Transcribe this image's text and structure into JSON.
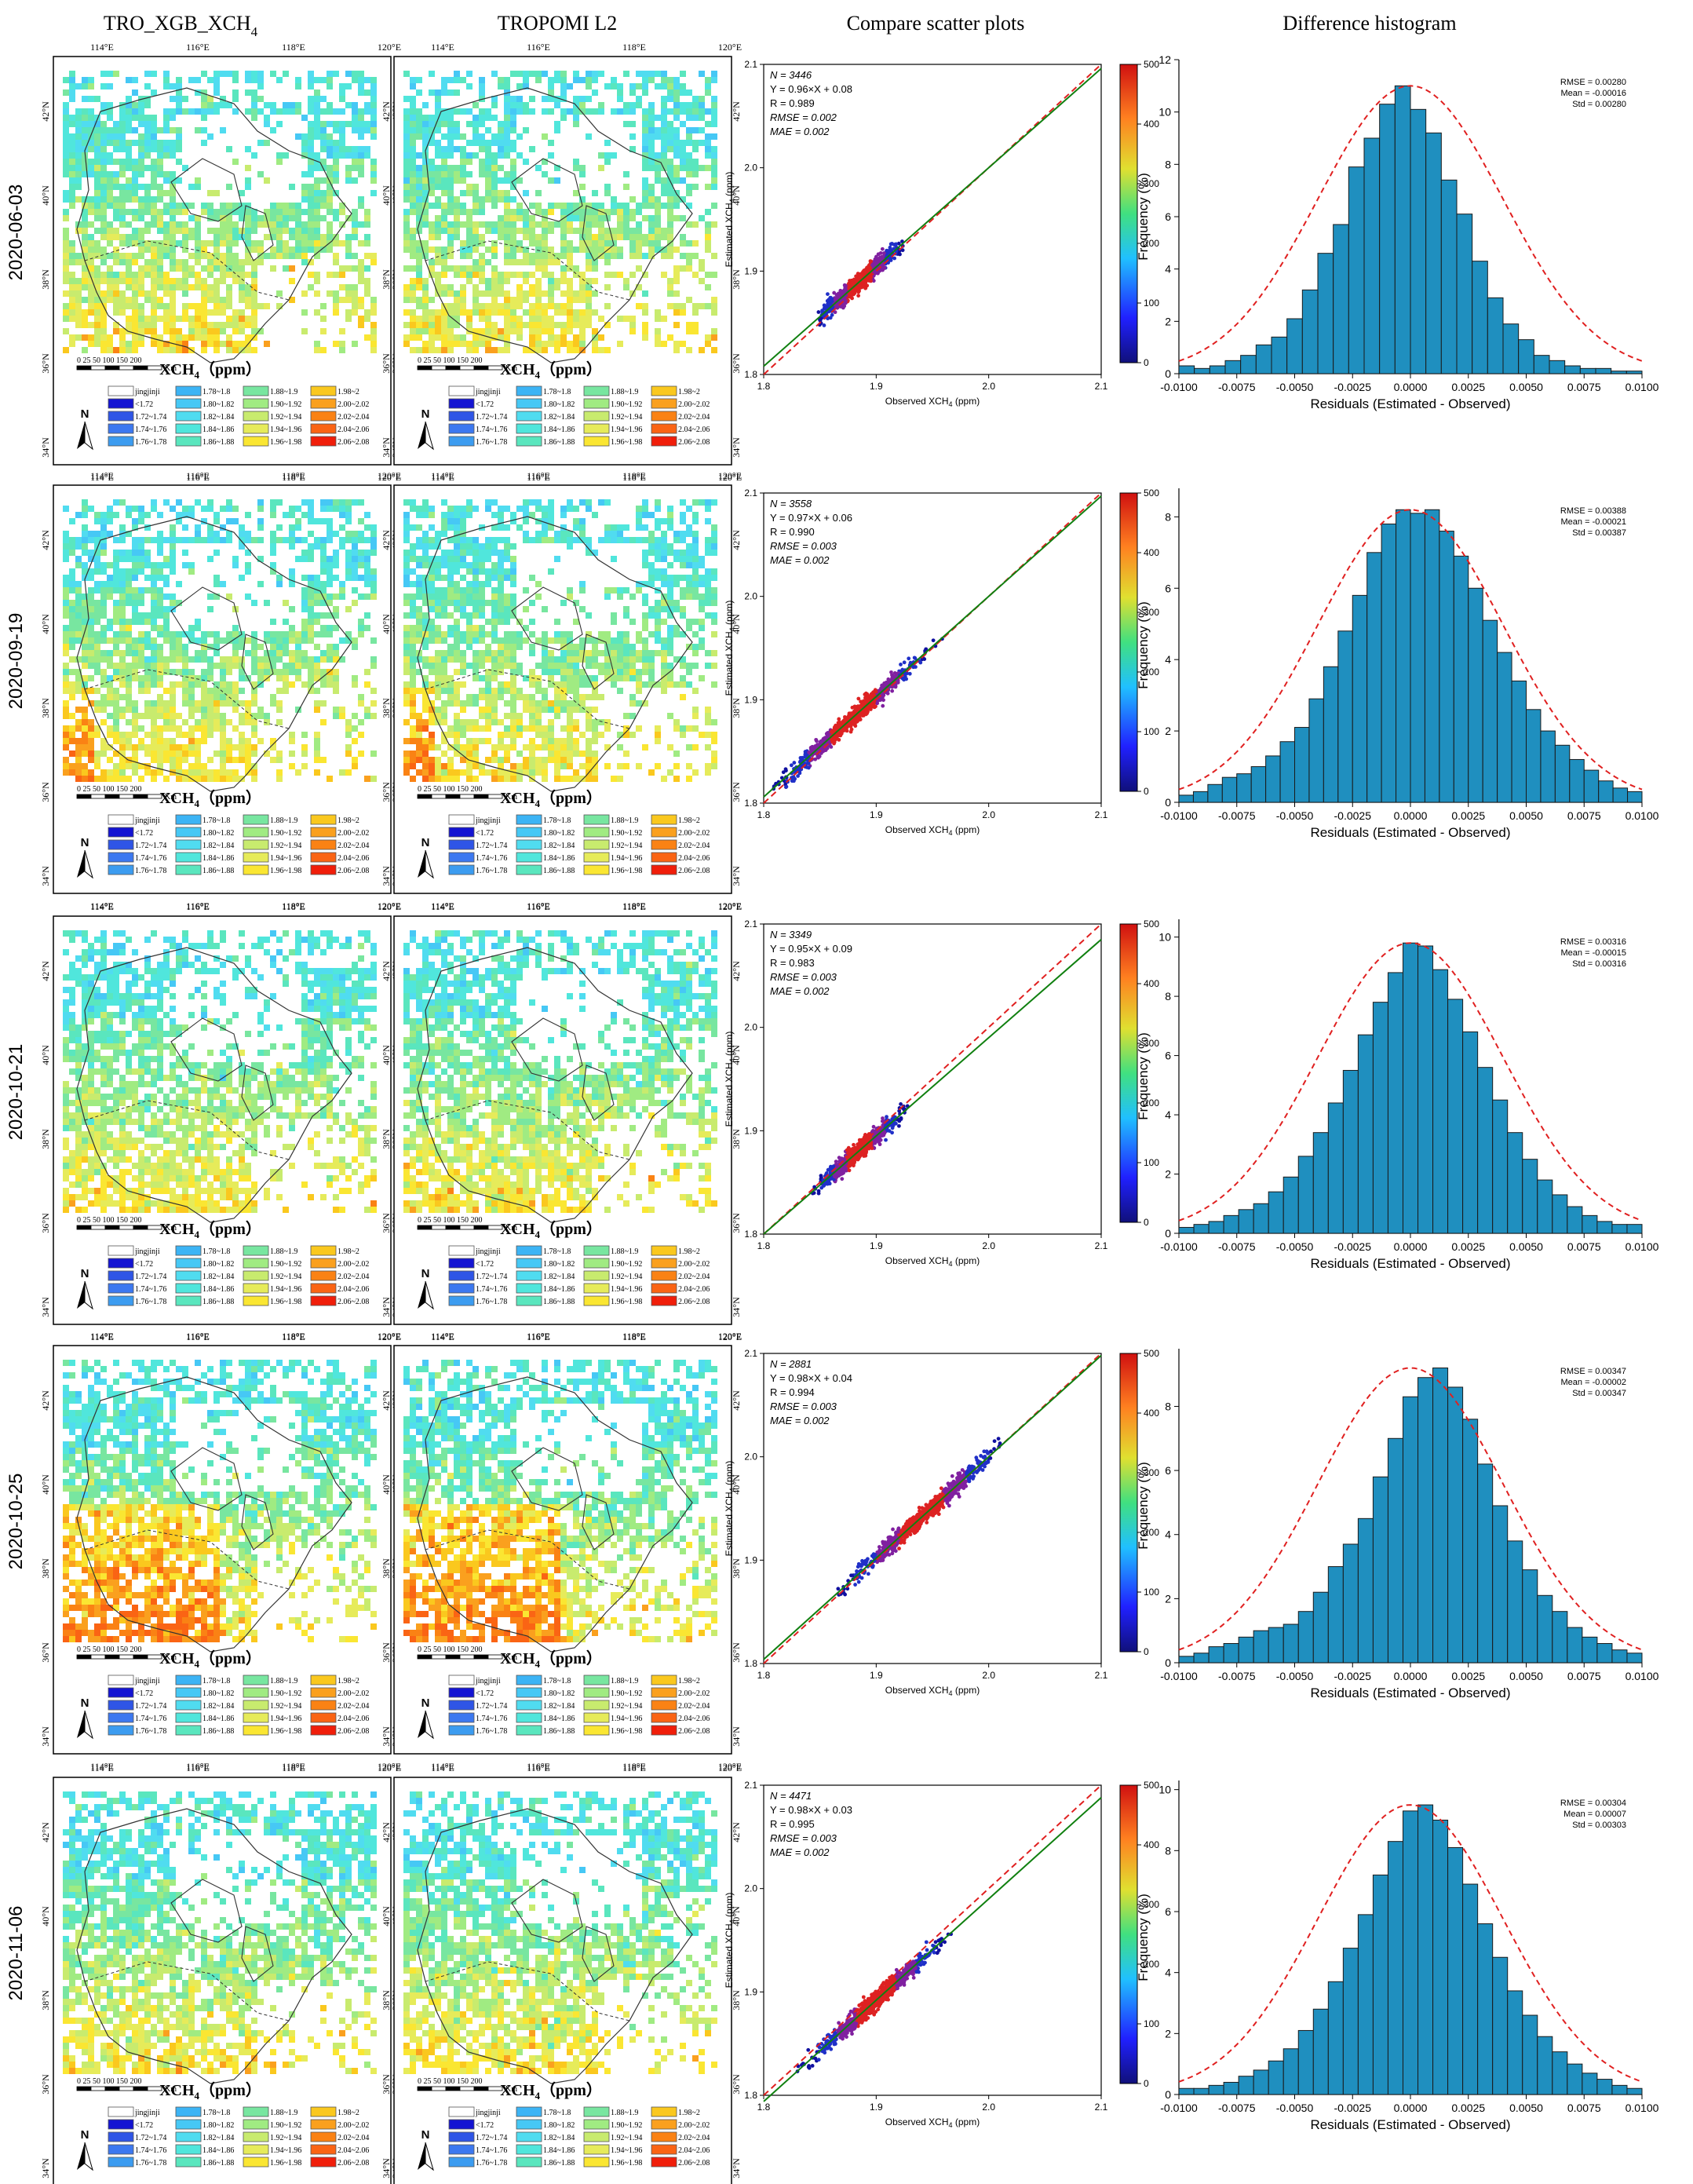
{
  "figure": {
    "headers": [
      "TRO_XGB_XCH",
      "TROPOMI L2",
      "Compare scatter plots",
      "Difference histogram"
    ],
    "header_subscript": "4"
  },
  "map": {
    "lon_ticks": [
      "114°E",
      "116°E",
      "118°E",
      "120°E"
    ],
    "lat_ticks": [
      "42°N",
      "40°N",
      "38°N",
      "36°N",
      "34°N"
    ],
    "scale_numbers": "0 25 50    100    150    200",
    "scale_unit": "Km",
    "legend_title": "XCH",
    "legend_title_sub": "4",
    "legend_title_unit": "（ppm）",
    "north_label": "N",
    "legend_items": [
      {
        "label": "jingjinji",
        "color": "#ffffff"
      },
      {
        "label": "<1.72",
        "color": "#1414d2"
      },
      {
        "label": "1.72~1.74",
        "color": "#2f55e6"
      },
      {
        "label": "1.74~1.76",
        "color": "#3c78f0"
      },
      {
        "label": "1.76~1.78",
        "color": "#3c9cf0"
      },
      {
        "label": "1.78~1.8",
        "color": "#3cb4f5"
      },
      {
        "label": "1.80~1.82",
        "color": "#46c8f5"
      },
      {
        "label": "1.82~1.84",
        "color": "#50dcf0"
      },
      {
        "label": "1.84~1.86",
        "color": "#50e6dc"
      },
      {
        "label": "1.86~1.88",
        "color": "#5ae6be"
      },
      {
        "label": "1.88~1.9",
        "color": "#78e6a0"
      },
      {
        "label": "1.90~1.92",
        "color": "#a0eb82"
      },
      {
        "label": "1.92~1.94",
        "color": "#c8eb6e"
      },
      {
        "label": "1.94~1.96",
        "color": "#e6eb5a"
      },
      {
        "label": "1.96~1.98",
        "color": "#fae632"
      },
      {
        "label": "1.98~2",
        "color": "#fac81e"
      },
      {
        "label": "2.00~2.02",
        "color": "#faa01e"
      },
      {
        "label": "2.02~2.04",
        "color": "#fa8214"
      },
      {
        "label": "2.04~2.06",
        "color": "#fa6414"
      },
      {
        "label": "2.06~2.08",
        "color": "#f01e0a"
      }
    ]
  },
  "scatter": {
    "xlabel": "Observed XCH",
    "ylabel": "Estimated XCH",
    "unit": " (ppm)",
    "sub": "4",
    "ticks": [
      "1.8",
      "1.9",
      "2.0",
      "2.1"
    ],
    "cbar_ticks": [
      "0",
      "100",
      "200",
      "300",
      "400",
      "500"
    ]
  },
  "histogram": {
    "xlabel": "Residuals (Estimated - Observed)",
    "ylabel": "Frequency (%)",
    "xticks": [
      "-0.0100",
      "-0.0075",
      "-0.0050",
      "-0.0025",
      "0.0000",
      "0.0025",
      "0.0050",
      "0.0075",
      "0.0100"
    ]
  },
  "chart_data": [
    {
      "type": "scatter",
      "date": "2020-06-03",
      "stats": [
        "N = 3446",
        "Y = 0.96×X + 0.08",
        "R = 0.989",
        "RMSE = 0.002",
        "MAE = 0.002"
      ],
      "xlim": [
        1.8,
        2.1
      ],
      "ylim": [
        1.8,
        2.1
      ],
      "fit": [
        0.96,
        0.08
      ],
      "x_range": [
        1.84,
        1.93
      ],
      "y_max": 2.1,
      "cbar_range": [
        0,
        500
      ],
      "hist_ylim": [
        0,
        12
      ],
      "hist_yticks": [
        "0",
        "2",
        "4",
        "6",
        "8",
        "10",
        "12"
      ],
      "hist_stats": [
        "RMSE = 0.00280",
        "Mean = -0.00016",
        "Std = 0.00280"
      ],
      "hist_values": [
        0.3,
        0.2,
        0.3,
        0.5,
        0.7,
        1.1,
        1.4,
        2.1,
        3.2,
        4.6,
        5.7,
        7.9,
        9.0,
        10.3,
        11.0,
        10.1,
        9.2,
        7.4,
        6.1,
        4.3,
        2.9,
        1.9,
        1.3,
        0.7,
        0.5,
        0.3,
        0.2,
        0.2,
        0.1,
        0.1
      ]
    },
    {
      "type": "scatter",
      "date": "2020-09-19",
      "stats": [
        "N = 3558",
        "Y = 0.97×X + 0.06",
        "R = 0.990",
        "RMSE = 0.003",
        "MAE = 0.002"
      ],
      "xlim": [
        1.8,
        2.1
      ],
      "ylim": [
        1.8,
        2.1
      ],
      "fit": [
        0.97,
        0.06
      ],
      "x_range": [
        1.8,
        1.96
      ],
      "y_max": 2.1,
      "cbar_range": [
        0,
        500
      ],
      "hist_ylim": [
        0,
        8.8
      ],
      "hist_yticks": [
        "0",
        "2",
        "4",
        "6",
        "8"
      ],
      "hist_stats": [
        "RMSE = 0.00388",
        "Mean = -0.00021",
        "Std = 0.00387"
      ],
      "hist_values": [
        0.2,
        0.3,
        0.5,
        0.7,
        0.8,
        1.0,
        1.3,
        1.7,
        2.1,
        2.9,
        3.8,
        4.8,
        5.8,
        7.0,
        7.8,
        8.2,
        8.1,
        8.2,
        7.6,
        6.9,
        6.0,
        5.1,
        4.2,
        3.4,
        2.6,
        2.0,
        1.6,
        1.2,
        0.9,
        0.6,
        0.4,
        0.3
      ]
    },
    {
      "type": "scatter",
      "date": "2020-10-21",
      "stats": [
        "N = 3349",
        "Y = 0.95×X + 0.09",
        "R = 0.983",
        "RMSE = 0.003",
        "MAE = 0.002"
      ],
      "xlim": [
        1.8,
        2.1
      ],
      "ylim": [
        1.8,
        2.1
      ],
      "fit": [
        0.95,
        0.09
      ],
      "x_range": [
        1.84,
        1.93
      ],
      "y_max": 2.1,
      "cbar_range": [
        0,
        500
      ],
      "hist_ylim": [
        0,
        10.6
      ],
      "hist_yticks": [
        "0",
        "2",
        "4",
        "6",
        "8",
        "10"
      ],
      "hist_stats": [
        "RMSE = 0.00316",
        "Mean = -0.00015",
        "Std = 0.00316"
      ],
      "hist_values": [
        0.2,
        0.3,
        0.4,
        0.6,
        0.8,
        1.0,
        1.4,
        1.9,
        2.6,
        3.4,
        4.4,
        5.5,
        6.7,
        7.8,
        8.8,
        9.8,
        9.7,
        8.9,
        7.9,
        6.8,
        5.6,
        4.5,
        3.4,
        2.5,
        1.8,
        1.3,
        0.9,
        0.6,
        0.4,
        0.3,
        0.3
      ]
    },
    {
      "type": "scatter",
      "date": "2020-10-25",
      "stats": [
        "N = 2881",
        "Y = 0.98×X + 0.04",
        "R = 0.994",
        "RMSE = 0.003",
        "MAE = 0.002"
      ],
      "xlim": [
        1.8,
        2.1
      ],
      "ylim": [
        1.8,
        2.1
      ],
      "fit": [
        0.98,
        0.04
      ],
      "x_range": [
        1.86,
        2.02
      ],
      "y_max": 2.1,
      "cbar_range": [
        0,
        500
      ],
      "hist_ylim": [
        0,
        9.8
      ],
      "hist_yticks": [
        "0",
        "2",
        "4",
        "6",
        "8"
      ],
      "hist_stats": [
        "RMSE = 0.00347",
        "Mean = -0.00002",
        "Std = 0.00347"
      ],
      "hist_values": [
        0.2,
        0.3,
        0.5,
        0.6,
        0.8,
        1.0,
        1.1,
        1.2,
        1.6,
        2.2,
        3.0,
        3.7,
        4.5,
        5.8,
        7.0,
        8.3,
        8.9,
        9.2,
        8.6,
        7.6,
        6.2,
        4.9,
        3.8,
        2.9,
        2.1,
        1.6,
        1.1,
        0.8,
        0.6,
        0.4,
        0.3
      ]
    },
    {
      "type": "scatter",
      "date": "2020-11-06",
      "stats": [
        "N = 4471",
        "Y = 0.98×X + 0.03",
        "R = 0.995",
        "RMSE = 0.003",
        "MAE = 0.002"
      ],
      "xlim": [
        1.8,
        2.1
      ],
      "ylim": [
        1.8,
        2.1
      ],
      "fit": [
        0.98,
        0.03
      ],
      "x_range": [
        1.83,
        1.97
      ],
      "y_max": 2.1,
      "cbar_range": [
        0,
        500
      ],
      "hist_ylim": [
        0,
        10.3
      ],
      "hist_yticks": [
        "0",
        "2",
        "4",
        "6",
        "8",
        "10"
      ],
      "hist_stats": [
        "RMSE = 0.00304",
        "Mean = 0.00007",
        "Std = 0.00303"
      ],
      "hist_values": [
        0.2,
        0.2,
        0.3,
        0.4,
        0.6,
        0.8,
        1.1,
        1.5,
        2.1,
        2.8,
        3.7,
        4.8,
        5.9,
        7.2,
        8.3,
        9.3,
        9.5,
        9.0,
        8.1,
        6.9,
        5.6,
        4.5,
        3.4,
        2.6,
        1.9,
        1.4,
        1.0,
        0.7,
        0.5,
        0.3,
        0.2
      ]
    }
  ]
}
